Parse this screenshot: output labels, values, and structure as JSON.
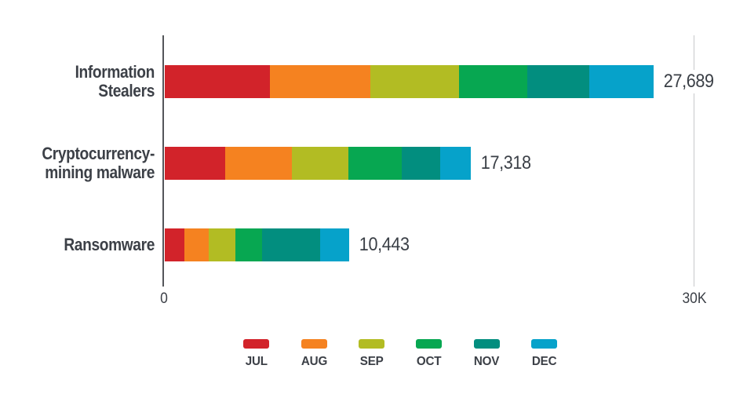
{
  "colors": {
    "jul_red": "#d2232a",
    "aug_orange": "#f58220",
    "sep_olive": "#b2bc23",
    "oct_green": "#07a751",
    "nov_teal": "#028e7f",
    "dec_blue": "#06a2ca",
    "text_dark": "#3c4047",
    "axis_dark": "#54565a",
    "axis_light": "#c7c8ca",
    "background": "#ffffff"
  },
  "chart_data": {
    "type": "bar",
    "orientation": "horizontal",
    "stacked": true,
    "title": "",
    "categories": [
      "Information Stealers",
      "Cryptocurrency-mining malware",
      "Ransomware"
    ],
    "category_lines": [
      [
        "Information",
        "Stealers"
      ],
      [
        "Cryptocurrency-",
        "mining malware"
      ],
      [
        "Ransomware"
      ]
    ],
    "series": [
      {
        "name": "JUL",
        "color": "#d2232a",
        "values": [
          5940,
          3420,
          1115
        ]
      },
      {
        "name": "AUG",
        "color": "#f58220",
        "values": [
          5686,
          3780,
          1385
        ]
      },
      {
        "name": "SEP",
        "color": "#b2bc23",
        "values": [
          5046,
          3210,
          1490
        ]
      },
      {
        "name": "OCT",
        "color": "#07a751",
        "values": [
          3882,
          3010,
          1520
        ]
      },
      {
        "name": "NOV",
        "color": "#028e7f",
        "values": [
          3509,
          2180,
          3300
        ]
      },
      {
        "name": "DEC",
        "color": "#06a2ca",
        "values": [
          3626,
          1718,
          1633
        ]
      }
    ],
    "totals": [
      27689,
      17318,
      10443
    ],
    "total_labels": [
      "27,689",
      "17,318",
      "10,443"
    ],
    "x_axis": {
      "min": 0,
      "max": 30000,
      "tick_labels": [
        "0",
        "30K"
      ],
      "grid": false
    },
    "legend": [
      "JUL",
      "AUG",
      "SEP",
      "OCT",
      "NOV",
      "DEC"
    ],
    "legend_position": "bottom"
  }
}
